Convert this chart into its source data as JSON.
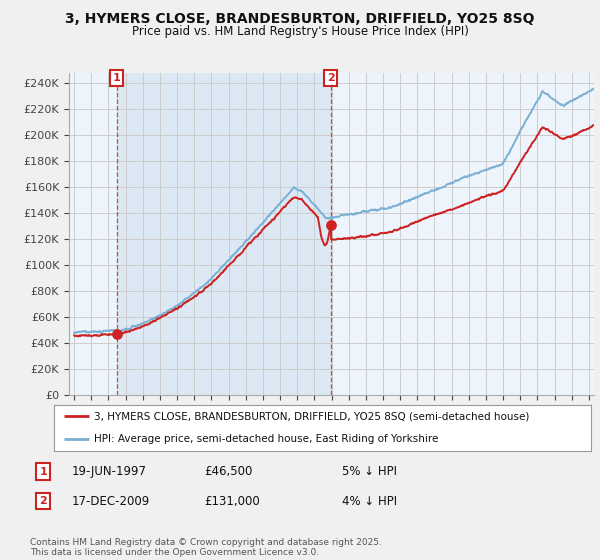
{
  "title": "3, HYMERS CLOSE, BRANDESBURTON, DRIFFIELD, YO25 8SQ",
  "subtitle": "Price paid vs. HM Land Registry's House Price Index (HPI)",
  "ylabel_ticks": [
    "£0",
    "£20K",
    "£40K",
    "£60K",
    "£80K",
    "£100K",
    "£120K",
    "£140K",
    "£160K",
    "£180K",
    "£200K",
    "£220K",
    "£240K"
  ],
  "ytick_values": [
    0,
    20000,
    40000,
    60000,
    80000,
    100000,
    120000,
    140000,
    160000,
    180000,
    200000,
    220000,
    240000
  ],
  "ylim": [
    0,
    248000
  ],
  "xlim_start": 1994.7,
  "xlim_end": 2025.3,
  "sale1_x": 1997.47,
  "sale1_y": 46500,
  "sale2_x": 2009.96,
  "sale2_y": 131000,
  "hpi_color": "#7ab0d4",
  "price_color": "#cc2222",
  "shade_color": "#dce9f5",
  "legend_price_label": "3, HYMERS CLOSE, BRANDESBURTON, DRIFFIELD, YO25 8SQ (semi-detached house)",
  "legend_hpi_label": "HPI: Average price, semi-detached house, East Riding of Yorkshire",
  "note1_box_label": "1",
  "note1_date": "19-JUN-1997",
  "note1_price": "£46,500",
  "note1_hpi": "5% ↓ HPI",
  "note2_box_label": "2",
  "note2_date": "17-DEC-2009",
  "note2_price": "£131,000",
  "note2_hpi": "4% ↓ HPI",
  "copyright_text": "Contains HM Land Registry data © Crown copyright and database right 2025.\nThis data is licensed under the Open Government Licence v3.0.",
  "background_color": "#f0f0f0",
  "plot_bg_color": "#f0f0f0",
  "grid_color": "#cccccc"
}
